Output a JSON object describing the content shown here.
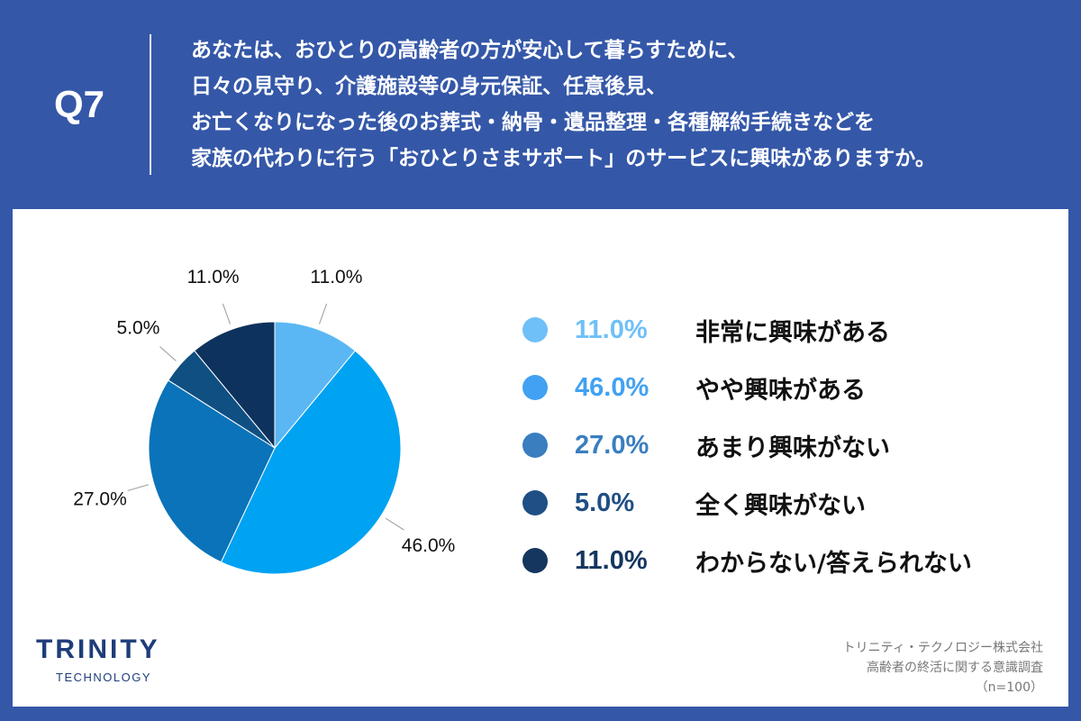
{
  "header": {
    "q_label": "Q7",
    "question_lines": [
      "あなたは、おひとりの高齢者の方が安心して暮らすために、",
      "日々の見守り、介護施設等の身元保証、任意後見、",
      "お亡くなりになった後のお葬式・納骨・遺品整理・各種解約手続きなどを",
      "家族の代わりに行う「おひとりさまサポート」のサービスに興味がありますか。"
    ]
  },
  "chart_data": {
    "type": "pie",
    "start": "top",
    "direction": "clockwise",
    "categories": [
      "非常に興味がある",
      "やや興味がある",
      "あまり興味がない",
      "全く興味がない",
      "わからない/答えられない"
    ],
    "values": [
      11.0,
      46.0,
      27.0,
      5.0,
      11.0
    ],
    "labels": [
      "11.0%",
      "46.0%",
      "27.0%",
      "5.0%",
      "11.0%"
    ],
    "slice_colors": [
      "#5ab7f4",
      "#00a2f2",
      "#0a73b9",
      "#0f4f82",
      "#0d325d"
    ],
    "legend_colors": [
      "#6fc0f8",
      "#42a1f2",
      "#3a7ec0",
      "#1f4f85",
      "#14365f"
    ],
    "legend_placement": "right"
  },
  "footer": {
    "logo_main": "TRINITY",
    "logo_sub": "TECHNOLOGY",
    "source_lines": [
      "トリニティ・テクノロジー株式会社",
      "高齢者の終活に関する意識調査",
      "（n=100）"
    ]
  }
}
